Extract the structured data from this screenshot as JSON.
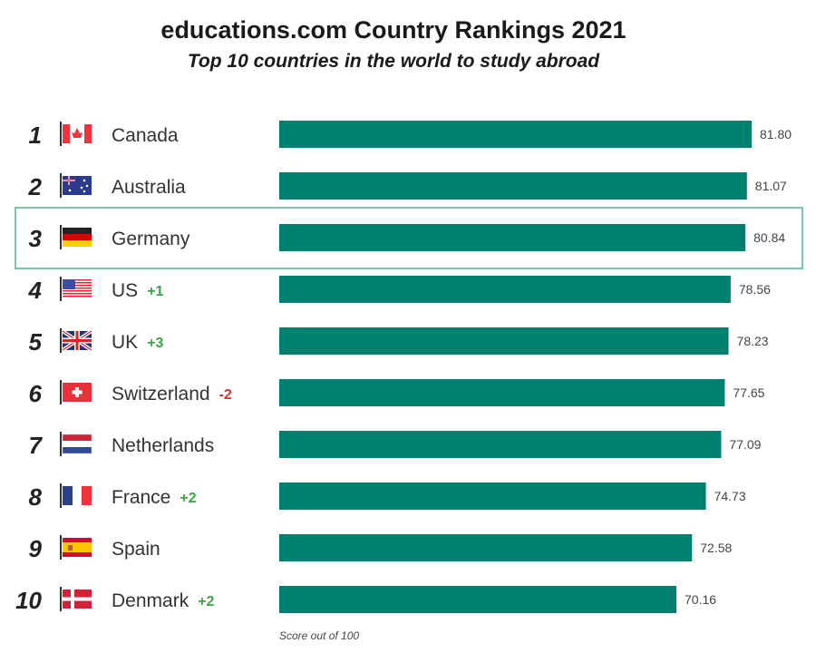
{
  "chart_data": {
    "type": "bar",
    "orientation": "horizontal",
    "title": "educations.com Country Rankings 2021",
    "subtitle": "Top 10 countries in the world to study abroad",
    "xlabel": "Score out of 100",
    "ranks": [
      "1",
      "2",
      "3",
      "4",
      "5",
      "6",
      "7",
      "8",
      "9",
      "10"
    ],
    "categories": [
      "Canada",
      "Australia",
      "Germany",
      "US",
      "UK",
      "Switzerland",
      "Netherlands",
      "France",
      "Spain",
      "Denmark"
    ],
    "values": [
      81.8,
      81.07,
      80.84,
      78.56,
      78.23,
      77.65,
      77.09,
      74.73,
      72.58,
      70.16
    ],
    "value_labels": [
      "81.80",
      "81.07",
      "80.84",
      "78.56",
      "78.23",
      "77.65",
      "77.09",
      "74.73",
      "72.58",
      "70.16"
    ],
    "rank_changes": [
      "",
      "",
      "",
      "+1",
      "+3",
      "-2",
      "",
      "+2",
      "",
      "+2"
    ],
    "flags": [
      "canada-flag",
      "australia-flag",
      "germany-flag",
      "us-flag",
      "uk-flag",
      "switzerland-flag",
      "netherlands-flag",
      "france-flag",
      "spain-flag",
      "denmark-flag"
    ],
    "highlighted": "Germany",
    "colors": {
      "bar": "#00806e",
      "highlight_border": "#7cc6a4",
      "up": "#3aa544",
      "down": "#d9302c"
    }
  }
}
